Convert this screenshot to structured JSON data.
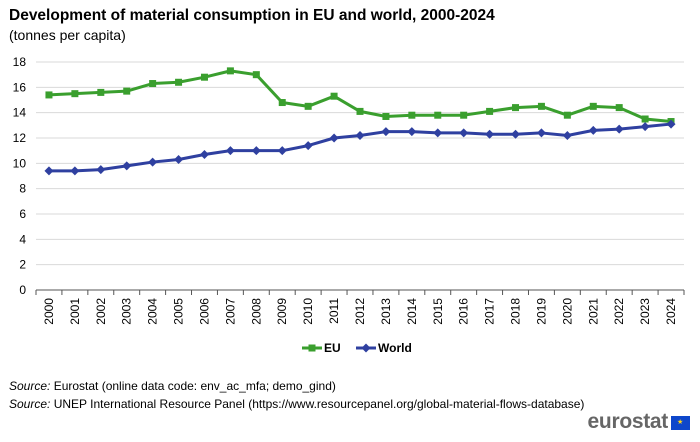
{
  "chart_data": {
    "type": "line",
    "title": "Development of material consumption in EU and world, 2000-2024",
    "subtitle": "(tonnes per capita)",
    "xlabel": "",
    "ylabel": "",
    "ylim": [
      0,
      18
    ],
    "yticks": [
      "0",
      "2",
      "4",
      "6",
      "8",
      "10",
      "12",
      "14",
      "16",
      "18"
    ],
    "grid": true,
    "legend_position": "bottom-center",
    "categories": [
      "2000",
      "2001",
      "2002",
      "2003",
      "2004",
      "2005",
      "2006",
      "2007",
      "2008",
      "2009",
      "2010",
      "2011",
      "2012",
      "2013",
      "2014",
      "2015",
      "2016",
      "2017",
      "2018",
      "2019",
      "2020",
      "2021",
      "2022",
      "2023",
      "2024"
    ],
    "series": [
      {
        "name": "EU",
        "color": "#3a9f2e",
        "marker": "square",
        "values": [
          15.4,
          15.5,
          15.6,
          15.7,
          16.3,
          16.4,
          16.8,
          17.3,
          17.0,
          14.8,
          14.5,
          15.3,
          14.1,
          13.7,
          13.8,
          13.8,
          13.8,
          14.1,
          14.4,
          14.5,
          13.8,
          14.5,
          14.4,
          13.5,
          13.3
        ]
      },
      {
        "name": "World",
        "color": "#2f40a0",
        "marker": "diamond",
        "values": [
          9.4,
          9.4,
          9.5,
          9.8,
          10.1,
          10.3,
          10.7,
          11.0,
          11.0,
          11.0,
          11.4,
          12.0,
          12.2,
          12.5,
          12.5,
          12.4,
          12.4,
          12.3,
          12.3,
          12.4,
          12.2,
          12.6,
          12.7,
          12.9,
          13.1
        ]
      }
    ]
  },
  "sources": [
    {
      "label": "Source:",
      "text": " Eurostat (online data code: env_ac_mfa; demo_gind)"
    },
    {
      "label": "Source:",
      "text": " UNEP International Resource Panel (https://www.resourcepanel.org/global-material-flows-database)"
    }
  ],
  "logo": {
    "text": "eurostat",
    "flag_color": "#0e47cb"
  }
}
